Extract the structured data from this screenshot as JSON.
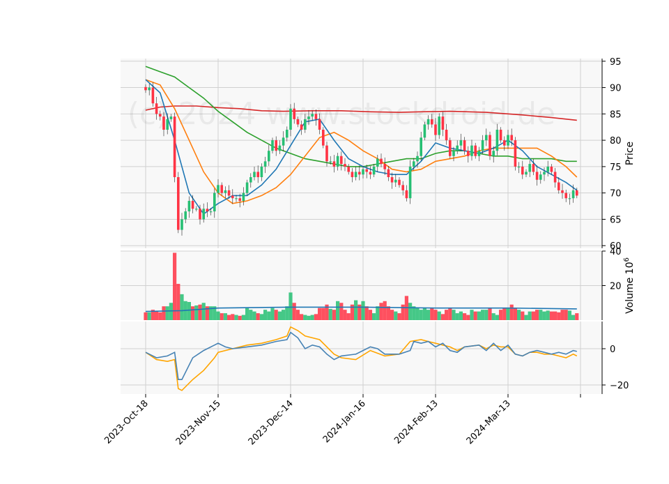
{
  "chart_data": {
    "type": "candlestick",
    "watermark": "(c) 2024 www.stockdroid.de",
    "x_tick_labels": [
      "2023-Oct-18",
      "2023-Nov-15",
      "2023-Dec-14",
      "2024-Jan-16",
      "2024-Feb-13",
      "2024-Mar-13"
    ],
    "x_tick_bar_index": [
      0,
      20,
      40,
      60,
      80,
      100
    ],
    "n_bars": 120,
    "colors": {
      "up": "#26bf73",
      "down": "#ff3344",
      "ma_fast": "#1f77b4",
      "ma_mid": "#ff7f0e",
      "ma_slow": "#2ca02c",
      "ma_long": "#d62728",
      "macd": "#4682b4",
      "signal": "#ffa500",
      "volume_ma": "#1f77b4",
      "panel_bg": "#f8f8f8",
      "grid": "#d0d0d0"
    },
    "price_panel": {
      "ylabel": "Price",
      "yticks": [
        60,
        65,
        70,
        75,
        80,
        85,
        90,
        95
      ],
      "ylim": [
        59.5,
        95.5
      ],
      "ohlc_anchor_closes": [
        [
          0,
          89.5
        ],
        [
          1,
          90
        ],
        [
          2,
          87
        ],
        [
          3,
          85
        ],
        [
          4,
          84.5
        ],
        [
          5,
          82
        ],
        [
          6,
          84
        ],
        [
          7,
          84.5
        ],
        [
          8,
          73
        ],
        [
          9,
          63
        ],
        [
          10,
          65
        ],
        [
          11,
          66.5
        ],
        [
          12,
          68.5
        ],
        [
          13,
          67
        ],
        [
          14,
          67
        ],
        [
          15,
          65
        ],
        [
          16,
          67
        ],
        [
          17,
          66.5
        ],
        [
          18,
          66.5
        ],
        [
          19,
          70
        ],
        [
          20,
          71.5
        ],
        [
          21,
          70
        ],
        [
          22,
          70.5
        ],
        [
          23,
          69.5
        ],
        [
          24,
          69
        ],
        [
          25,
          69
        ],
        [
          26,
          68.5
        ],
        [
          27,
          70
        ],
        [
          28,
          72
        ],
        [
          29,
          73
        ],
        [
          30,
          74
        ],
        [
          31,
          73
        ],
        [
          32,
          75
        ],
        [
          33,
          76
        ],
        [
          34,
          78
        ],
        [
          35,
          80
        ],
        [
          36,
          78
        ],
        [
          37,
          79
        ],
        [
          38,
          80.5
        ],
        [
          39,
          82
        ],
        [
          40,
          86
        ],
        [
          41,
          84
        ],
        [
          42,
          83
        ],
        [
          43,
          82
        ],
        [
          44,
          84
        ],
        [
          45,
          84.5
        ],
        [
          46,
          85
        ],
        [
          47,
          84
        ],
        [
          48,
          82
        ],
        [
          49,
          79
        ],
        [
          50,
          76
        ],
        [
          51,
          76
        ],
        [
          52,
          75
        ],
        [
          53,
          77
        ],
        [
          54,
          75.5
        ],
        [
          55,
          75
        ],
        [
          56,
          74
        ],
        [
          57,
          73
        ],
        [
          58,
          74
        ],
        [
          59,
          73.5
        ],
        [
          60,
          74.5
        ],
        [
          61,
          74
        ],
        [
          62,
          73.5
        ],
        [
          63,
          75
        ],
        [
          64,
          76.5
        ],
        [
          65,
          75.5
        ],
        [
          66,
          74.5
        ],
        [
          67,
          73
        ],
        [
          68,
          72
        ],
        [
          69,
          72.5
        ],
        [
          70,
          71.5
        ],
        [
          71,
          70.5
        ],
        [
          72,
          69
        ],
        [
          73,
          75
        ],
        [
          74,
          76
        ],
        [
          75,
          77
        ],
        [
          76,
          80.5
        ],
        [
          77,
          83
        ],
        [
          78,
          84
        ],
        [
          79,
          83
        ],
        [
          80,
          81
        ],
        [
          81,
          84.5
        ],
        [
          82,
          82
        ],
        [
          83,
          80
        ],
        [
          84,
          77
        ],
        [
          85,
          78
        ],
        [
          86,
          79
        ],
        [
          87,
          80
        ],
        [
          88,
          78
        ],
        [
          89,
          77
        ],
        [
          90,
          79
        ],
        [
          91,
          77
        ],
        [
          92,
          78
        ],
        [
          93,
          80
        ],
        [
          94,
          81
        ],
        [
          95,
          77
        ],
        [
          96,
          78
        ],
        [
          97,
          82
        ],
        [
          98,
          80
        ],
        [
          99,
          79
        ],
        [
          100,
          81
        ],
        [
          101,
          80
        ],
        [
          102,
          75
        ],
        [
          103,
          75
        ],
        [
          104,
          73.5
        ],
        [
          105,
          74
        ],
        [
          106,
          75.5
        ],
        [
          107,
          74
        ],
        [
          108,
          72.5
        ],
        [
          109,
          73.5
        ],
        [
          110,
          74
        ],
        [
          111,
          75
        ],
        [
          112,
          74
        ],
        [
          113,
          72
        ],
        [
          114,
          70.5
        ],
        [
          115,
          70
        ],
        [
          116,
          69
        ],
        [
          117,
          69
        ],
        [
          118,
          70.5
        ],
        [
          119,
          69.5
        ]
      ],
      "ma_fast": [
        [
          0,
          91.5
        ],
        [
          4,
          89
        ],
        [
          8,
          80
        ],
        [
          12,
          70
        ],
        [
          16,
          66
        ],
        [
          20,
          68
        ],
        [
          24,
          69.5
        ],
        [
          28,
          69.5
        ],
        [
          32,
          71.5
        ],
        [
          36,
          74.5
        ],
        [
          40,
          79
        ],
        [
          44,
          83.5
        ],
        [
          48,
          84
        ],
        [
          52,
          80
        ],
        [
          56,
          76.5
        ],
        [
          60,
          75
        ],
        [
          64,
          74
        ],
        [
          68,
          73.5
        ],
        [
          72,
          73.5
        ],
        [
          76,
          76
        ],
        [
          80,
          79.5
        ],
        [
          84,
          78.5
        ],
        [
          88,
          78
        ],
        [
          92,
          77.5
        ],
        [
          96,
          78.5
        ],
        [
          100,
          80
        ],
        [
          104,
          78
        ],
        [
          108,
          75
        ],
        [
          112,
          73.5
        ],
        [
          116,
          72
        ],
        [
          119,
          70.5
        ]
      ],
      "ma_mid": [
        [
          0,
          91.5
        ],
        [
          4,
          90.5
        ],
        [
          8,
          86
        ],
        [
          12,
          80
        ],
        [
          16,
          74
        ],
        [
          20,
          70
        ],
        [
          24,
          68
        ],
        [
          28,
          68.5
        ],
        [
          32,
          69.5
        ],
        [
          36,
          71
        ],
        [
          40,
          73.5
        ],
        [
          44,
          77
        ],
        [
          48,
          80.5
        ],
        [
          52,
          81.5
        ],
        [
          56,
          80
        ],
        [
          60,
          78
        ],
        [
          64,
          76.5
        ],
        [
          68,
          74.5
        ],
        [
          72,
          74
        ],
        [
          76,
          74.5
        ],
        [
          80,
          76
        ],
        [
          84,
          76.5
        ],
        [
          88,
          77
        ],
        [
          92,
          78
        ],
        [
          96,
          78.5
        ],
        [
          100,
          78.5
        ],
        [
          104,
          78.5
        ],
        [
          108,
          78.5
        ],
        [
          112,
          77
        ],
        [
          116,
          75
        ],
        [
          119,
          73
        ]
      ],
      "ma_slow": [
        [
          0,
          94
        ],
        [
          4,
          93
        ],
        [
          8,
          92
        ],
        [
          12,
          90
        ],
        [
          16,
          88
        ],
        [
          20,
          85.5
        ],
        [
          24,
          83.5
        ],
        [
          28,
          81.5
        ],
        [
          32,
          80
        ],
        [
          36,
          78.5
        ],
        [
          40,
          77.5
        ],
        [
          44,
          76.5
        ],
        [
          48,
          76
        ],
        [
          52,
          75.5
        ],
        [
          56,
          75
        ],
        [
          60,
          75
        ],
        [
          64,
          75.5
        ],
        [
          68,
          76
        ],
        [
          72,
          76.5
        ],
        [
          76,
          76.5
        ],
        [
          80,
          77.5
        ],
        [
          84,
          78
        ],
        [
          88,
          78
        ],
        [
          92,
          77.5
        ],
        [
          96,
          77
        ],
        [
          100,
          77
        ],
        [
          104,
          76.5
        ],
        [
          108,
          76.5
        ],
        [
          112,
          76.5
        ],
        [
          116,
          76
        ],
        [
          119,
          76
        ]
      ],
      "ma_long": [
        [
          0,
          85.7
        ],
        [
          4,
          86.3
        ],
        [
          8,
          86.5
        ],
        [
          14,
          86.5
        ],
        [
          20,
          86.2
        ],
        [
          26,
          86
        ],
        [
          32,
          85.6
        ],
        [
          38,
          85.5
        ],
        [
          46,
          85.6
        ],
        [
          54,
          85.6
        ],
        [
          62,
          85.4
        ],
        [
          70,
          85.3
        ],
        [
          76,
          85.4
        ],
        [
          84,
          85.5
        ],
        [
          94,
          85.3
        ],
        [
          104,
          84.8
        ],
        [
          112,
          84.3
        ],
        [
          119,
          83.8
        ]
      ]
    },
    "volume_panel": {
      "ylabel": "Volume",
      "exponent_label": "10",
      "exponent_power": "6",
      "yticks": [
        20,
        40
      ],
      "ylim": [
        0,
        40
      ],
      "volumes_millions": [
        4.5,
        4.5,
        6,
        5,
        4.5,
        8,
        8,
        10,
        39,
        21,
        15,
        11,
        10.5,
        8,
        8.5,
        9,
        10,
        8,
        8,
        8,
        5,
        4,
        4,
        3,
        3.5,
        3,
        2.5,
        3,
        7,
        6,
        5,
        4,
        3.5,
        6,
        5,
        7,
        6,
        5,
        6,
        8,
        16,
        10,
        6,
        3.5,
        3,
        2.5,
        3,
        3.5,
        7,
        7,
        9,
        6.5,
        6,
        11,
        10,
        6,
        4,
        9,
        11.5,
        9,
        11,
        8,
        6,
        4,
        8,
        10,
        11,
        8,
        6,
        5,
        4,
        9,
        14,
        10,
        8,
        7,
        6,
        7,
        6,
        7,
        6,
        5,
        3.5,
        6,
        7,
        6,
        4,
        5,
        4,
        3,
        6,
        5,
        5,
        6,
        6,
        7,
        4,
        3,
        6,
        7,
        7,
        9,
        7,
        6,
        5,
        3,
        5,
        5,
        6,
        6,
        5,
        5.5,
        5,
        5,
        4.5,
        6,
        6,
        5.5,
        3,
        4
      ],
      "volume_ma_millions": [
        [
          0,
          5
        ],
        [
          10,
          5.5
        ],
        [
          20,
          7
        ],
        [
          40,
          7.5
        ],
        [
          60,
          7.5
        ],
        [
          80,
          7
        ],
        [
          100,
          7
        ],
        [
          119,
          6.5
        ]
      ]
    },
    "macd_panel": {
      "yticks": [
        -20,
        0
      ],
      "ylim": [
        -25,
        15
      ],
      "macd": [
        [
          0,
          -2
        ],
        [
          3,
          -5
        ],
        [
          6,
          -4
        ],
        [
          8,
          -2
        ],
        [
          9,
          -17
        ],
        [
          10,
          -17
        ],
        [
          13,
          -5
        ],
        [
          16,
          -1
        ],
        [
          19,
          2
        ],
        [
          20,
          3
        ],
        [
          22,
          1
        ],
        [
          24,
          0
        ],
        [
          28,
          1
        ],
        [
          32,
          2
        ],
        [
          36,
          4
        ],
        [
          39,
          5
        ],
        [
          40,
          9
        ],
        [
          42,
          6
        ],
        [
          44,
          0
        ],
        [
          46,
          2
        ],
        [
          48,
          1
        ],
        [
          50,
          -3
        ],
        [
          52,
          -6
        ],
        [
          54,
          -4
        ],
        [
          58,
          -3
        ],
        [
          62,
          1
        ],
        [
          64,
          0
        ],
        [
          66,
          -3
        ],
        [
          70,
          -3
        ],
        [
          73,
          -1
        ],
        [
          74,
          4
        ],
        [
          76,
          3
        ],
        [
          78,
          4
        ],
        [
          80,
          1
        ],
        [
          82,
          3
        ],
        [
          84,
          -1
        ],
        [
          86,
          -2
        ],
        [
          88,
          1
        ],
        [
          92,
          2
        ],
        [
          94,
          -1
        ],
        [
          96,
          3
        ],
        [
          98,
          -1
        ],
        [
          100,
          2
        ],
        [
          102,
          -3
        ],
        [
          104,
          -4
        ],
        [
          106,
          -2
        ],
        [
          108,
          -1
        ],
        [
          110,
          -2
        ],
        [
          112,
          -3
        ],
        [
          114,
          -2
        ],
        [
          116,
          -3
        ],
        [
          118,
          -1
        ],
        [
          119,
          -1.5
        ]
      ],
      "signal": [
        [
          0,
          -2
        ],
        [
          3,
          -6
        ],
        [
          6,
          -7
        ],
        [
          8,
          -6
        ],
        [
          9,
          -22
        ],
        [
          10,
          -23
        ],
        [
          13,
          -17
        ],
        [
          16,
          -12
        ],
        [
          19,
          -5
        ],
        [
          20,
          -2
        ],
        [
          24,
          0
        ],
        [
          28,
          2
        ],
        [
          32,
          3
        ],
        [
          36,
          5
        ],
        [
          39,
          7
        ],
        [
          40,
          12
        ],
        [
          42,
          10
        ],
        [
          44,
          7
        ],
        [
          48,
          5
        ],
        [
          52,
          -3
        ],
        [
          54,
          -5
        ],
        [
          58,
          -6
        ],
        [
          62,
          -1
        ],
        [
          66,
          -4
        ],
        [
          70,
          -3
        ],
        [
          73,
          4
        ],
        [
          76,
          5
        ],
        [
          78,
          4
        ],
        [
          80,
          3
        ],
        [
          82,
          2
        ],
        [
          84,
          1
        ],
        [
          86,
          -1
        ],
        [
          88,
          1
        ],
        [
          92,
          2
        ],
        [
          94,
          0
        ],
        [
          96,
          2
        ],
        [
          98,
          1
        ],
        [
          100,
          1
        ],
        [
          102,
          -3
        ],
        [
          104,
          -4
        ],
        [
          106,
          -2
        ],
        [
          108,
          -2
        ],
        [
          110,
          -3
        ],
        [
          112,
          -3
        ],
        [
          114,
          -4
        ],
        [
          116,
          -5
        ],
        [
          118,
          -3
        ],
        [
          119,
          -4
        ]
      ]
    }
  }
}
